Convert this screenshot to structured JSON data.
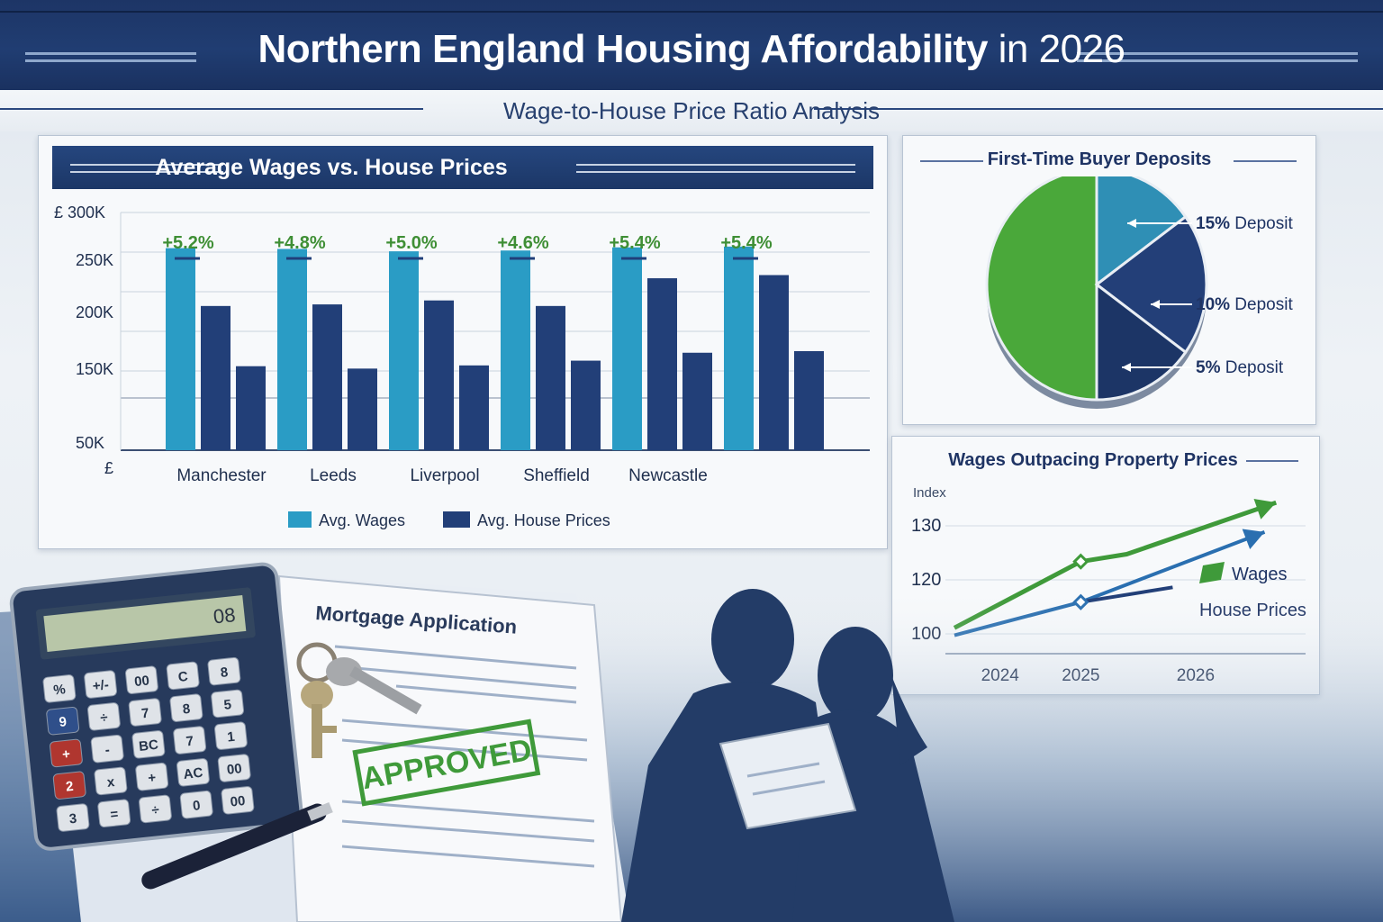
{
  "header": {
    "title_main": "Northern England Housing Affordability",
    "title_year": "in 2026",
    "subtitle": "Wage-to-House Price Ratio Analysis"
  },
  "colors": {
    "navy": "#1f3c74",
    "wages_teal": "#2a9cc5",
    "house_navy": "#213f7a",
    "green": "#3f9a3a",
    "pie_green": "#4aa83a"
  },
  "chart_data": [
    {
      "type": "bar",
      "title": "Average Wages vs. House Prices",
      "y_tick_labels": [
        "£ 300K",
        "250K",
        "200K",
        "150K",
        "50K",
        "£"
      ],
      "categories": [
        "Manchester",
        "Leeds",
        "Liverpool",
        "Sheffield",
        "Newcastle",
        ""
      ],
      "growth_labels": [
        "+5.2%",
        "+4.8%",
        "+5.0%",
        "+4.6%",
        "+5.4%",
        "+5.4%"
      ],
      "series": [
        {
          "name": "Avg. Wages",
          "color": "#2a9cc5",
          "values": [
            255,
            254,
            251,
            252,
            256,
            257
          ]
        },
        {
          "name": "Avg. House Prices",
          "color": "#223f78",
          "values": [
            182,
            184,
            189,
            182,
            217,
            221
          ]
        },
        {
          "name": "",
          "color": "#223f78",
          "values": [
            106,
            103,
            107,
            113,
            123,
            125
          ]
        }
      ],
      "ylim": [
        0,
        300
      ],
      "legend": [
        "Avg. Wages",
        "Avg. House Prices"
      ],
      "legend_position": "bottom",
      "grid": true
    },
    {
      "type": "pie",
      "title": "First-Time Buyer Deposits",
      "slices": [
        {
          "label": "",
          "value": 50,
          "color": "#4aa83a"
        },
        {
          "label": "15% Deposit",
          "value": 15,
          "color": "#2f8fb5"
        },
        {
          "label": "10% Deposit",
          "value": 20,
          "color": "#233f78"
        },
        {
          "label": "5% Deposit",
          "value": 15,
          "color": "#1c3566"
        }
      ],
      "annotations": [
        {
          "pct": "15%",
          "text": "Deposit"
        },
        {
          "pct": "10%",
          "text": "Deposit"
        },
        {
          "pct": "5%",
          "text": "Deposit"
        }
      ]
    },
    {
      "type": "line",
      "title": "Wages Outpacing Property Prices",
      "ylabel": "Index",
      "y_tick_labels": [
        "130",
        "120",
        "100"
      ],
      "x": [
        2024,
        2025,
        2026
      ],
      "x_tick_labels": [
        "2024",
        "2025",
        "2026"
      ],
      "ylim": [
        95,
        138
      ],
      "series": [
        {
          "name": "Wages",
          "color": "#3f9a3a",
          "points": [
            [
              2023.9,
              102
            ],
            [
              2025,
              120
            ],
            [
              2025.4,
              122
            ],
            [
              2026.7,
              136
            ]
          ]
        },
        {
          "name": "House Prices",
          "color": "#2a6fb0",
          "points": [
            [
              2023.9,
              100
            ],
            [
              2025,
              109
            ],
            [
              2026.6,
              128
            ]
          ]
        },
        {
          "name": "",
          "color": "#223f78",
          "points": [
            [
              2025,
              109
            ],
            [
              2025.8,
              113
            ]
          ]
        }
      ],
      "legend": [
        "Wages",
        "House Prices"
      ]
    }
  ],
  "scene": {
    "document_title": "Mortgage Application",
    "stamp": "APPROVED",
    "calculator_display": "08",
    "calculator_keys": [
      "%",
      "+/-",
      "00",
      "C",
      "8",
      "9",
      "÷",
      "7",
      "8",
      "5",
      "+",
      "-",
      "BC",
      "7",
      "1",
      "2",
      "x",
      "+",
      "AC",
      "00",
      "3",
      "=",
      "÷",
      "0",
      "00",
      "",
      "%",
      "+",
      "÷"
    ]
  }
}
